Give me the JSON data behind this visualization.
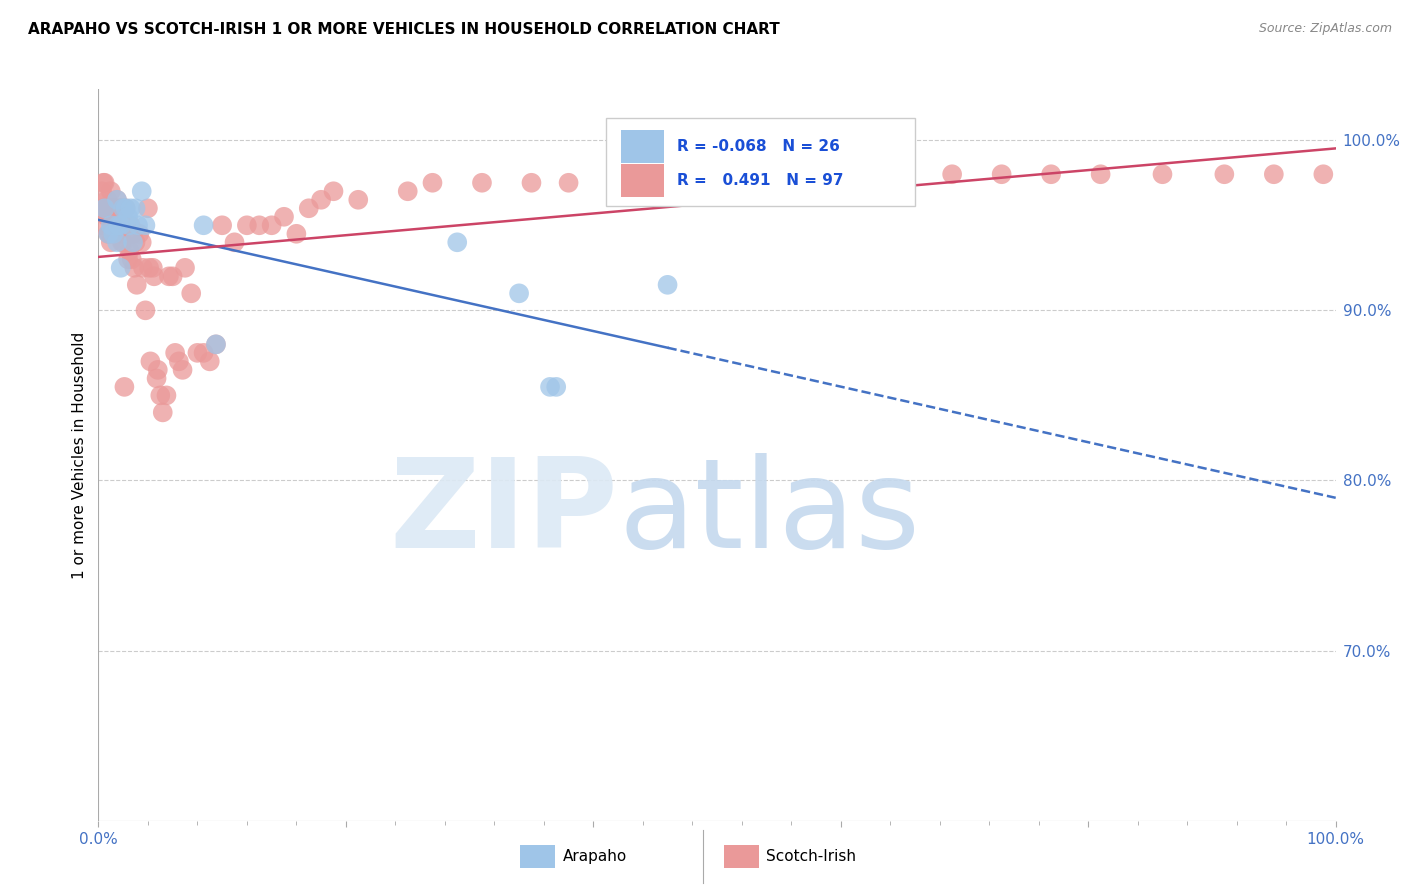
{
  "title": "ARAPAHO VS SCOTCH-IRISH 1 OR MORE VEHICLES IN HOUSEHOLD CORRELATION CHART",
  "source": "Source: ZipAtlas.com",
  "ylabel": "1 or more Vehicles in Household",
  "xlim": [
    0.0,
    1.0
  ],
  "ylim": [
    0.6,
    1.03
  ],
  "legend_r_arapaho": "-0.068",
  "legend_n_arapaho": "26",
  "legend_r_scotch": "0.491",
  "legend_n_scotch": "97",
  "arapaho_color": "#9fc5e8",
  "scotch_color": "#ea9999",
  "arapaho_line_color": "#4472c4",
  "scotch_line_color": "#cc4466",
  "arapaho_x": [
    0.005,
    0.008,
    0.01,
    0.012,
    0.015,
    0.015,
    0.016,
    0.018,
    0.018,
    0.02,
    0.022,
    0.024,
    0.025,
    0.026,
    0.028,
    0.03,
    0.032,
    0.035,
    0.038,
    0.085,
    0.095,
    0.29,
    0.34,
    0.365,
    0.37,
    0.46
  ],
  "arapaho_y": [
    0.96,
    0.945,
    0.95,
    0.945,
    0.965,
    0.94,
    0.95,
    0.95,
    0.925,
    0.96,
    0.96,
    0.955,
    0.95,
    0.96,
    0.94,
    0.96,
    0.95,
    0.97,
    0.95,
    0.95,
    0.88,
    0.94,
    0.91,
    0.855,
    0.855,
    0.915
  ],
  "scotch_x": [
    0.003,
    0.003,
    0.004,
    0.004,
    0.005,
    0.005,
    0.006,
    0.007,
    0.007,
    0.008,
    0.008,
    0.009,
    0.009,
    0.01,
    0.01,
    0.01,
    0.011,
    0.011,
    0.012,
    0.012,
    0.013,
    0.013,
    0.014,
    0.015,
    0.015,
    0.016,
    0.017,
    0.018,
    0.018,
    0.019,
    0.02,
    0.02,
    0.021,
    0.022,
    0.024,
    0.025,
    0.026,
    0.027,
    0.028,
    0.029,
    0.03,
    0.031,
    0.033,
    0.035,
    0.036,
    0.038,
    0.04,
    0.041,
    0.042,
    0.044,
    0.045,
    0.047,
    0.048,
    0.05,
    0.052,
    0.055,
    0.057,
    0.06,
    0.062,
    0.065,
    0.068,
    0.07,
    0.075,
    0.08,
    0.085,
    0.09,
    0.095,
    0.1,
    0.11,
    0.12,
    0.13,
    0.14,
    0.15,
    0.16,
    0.17,
    0.18,
    0.19,
    0.21,
    0.25,
    0.27,
    0.31,
    0.35,
    0.38,
    0.42,
    0.46,
    0.5,
    0.54,
    0.59,
    0.64,
    0.69,
    0.73,
    0.77,
    0.81,
    0.86,
    0.91,
    0.95,
    0.99
  ],
  "scotch_y": [
    0.97,
    0.95,
    0.975,
    0.96,
    0.975,
    0.96,
    0.96,
    0.965,
    0.955,
    0.96,
    0.945,
    0.96,
    0.945,
    0.97,
    0.955,
    0.94,
    0.96,
    0.95,
    0.96,
    0.95,
    0.96,
    0.945,
    0.96,
    0.965,
    0.95,
    0.955,
    0.96,
    0.96,
    0.945,
    0.94,
    0.95,
    0.94,
    0.855,
    0.96,
    0.93,
    0.935,
    0.95,
    0.93,
    0.945,
    0.925,
    0.94,
    0.915,
    0.945,
    0.94,
    0.925,
    0.9,
    0.96,
    0.925,
    0.87,
    0.925,
    0.92,
    0.86,
    0.865,
    0.85,
    0.84,
    0.85,
    0.92,
    0.92,
    0.875,
    0.87,
    0.865,
    0.925,
    0.91,
    0.875,
    0.875,
    0.87,
    0.88,
    0.95,
    0.94,
    0.95,
    0.95,
    0.95,
    0.955,
    0.945,
    0.96,
    0.965,
    0.97,
    0.965,
    0.97,
    0.975,
    0.975,
    0.975,
    0.975,
    0.975,
    0.975,
    0.975,
    0.975,
    0.98,
    0.98,
    0.98,
    0.98,
    0.98,
    0.98,
    0.98,
    0.98,
    0.98,
    0.98
  ]
}
